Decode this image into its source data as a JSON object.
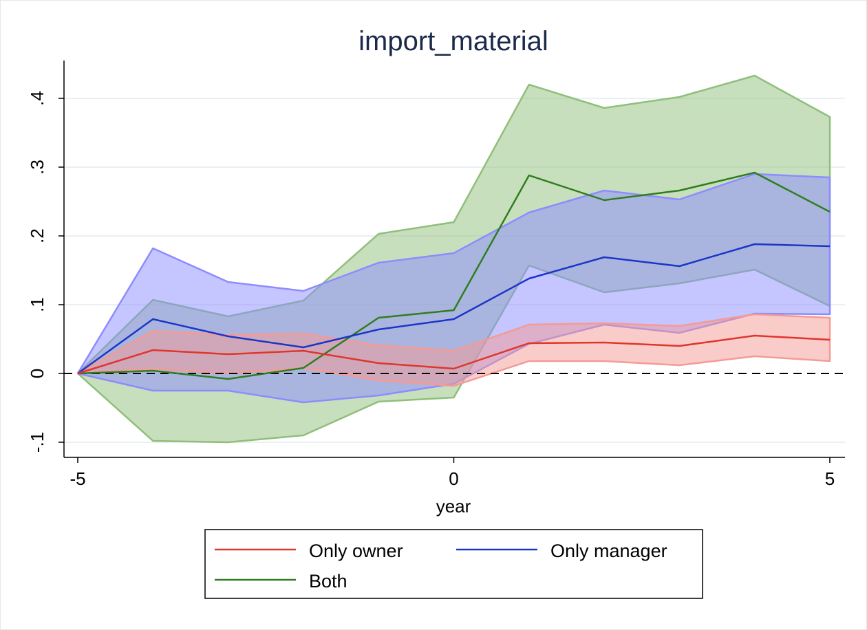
{
  "chart_data": {
    "type": "line",
    "title": "import_material",
    "xlabel": "year",
    "ylabel": "",
    "xlim": [
      -5,
      5
    ],
    "ylim": [
      -0.12,
      0.45
    ],
    "xticks": [
      -5,
      0,
      5
    ],
    "xtick_labels": [
      "-5",
      "0",
      "5"
    ],
    "yticks": [
      -0.1,
      0,
      0.1,
      0.2,
      0.3,
      0.4
    ],
    "ytick_labels": [
      "-.1",
      "0",
      ".1",
      ".2",
      ".3",
      ".4"
    ],
    "grid": true,
    "reference_line": {
      "y": 0,
      "style": "dashed"
    },
    "legend_position": "bottom",
    "x": [
      -5,
      -4,
      -3,
      -2,
      -1,
      0,
      1,
      2,
      3,
      4,
      5
    ],
    "series": [
      {
        "name": "Both",
        "color": "#2e7d1e",
        "band_color": "#8fbf7a",
        "values": [
          0,
          0.004,
          -0.008,
          0.008,
          0.081,
          0.092,
          0.288,
          0.252,
          0.266,
          0.292,
          0.235
        ],
        "lower": [
          0,
          -0.098,
          -0.1,
          -0.09,
          -0.041,
          -0.035,
          0.157,
          0.118,
          0.131,
          0.151,
          0.098
        ],
        "upper": [
          0,
          0.107,
          0.083,
          0.106,
          0.203,
          0.22,
          0.42,
          0.386,
          0.402,
          0.433,
          0.373
        ]
      },
      {
        "name": "Only manager",
        "color": "#1c35c8",
        "band_color": "#8c8cff",
        "values": [
          0,
          0.079,
          0.054,
          0.038,
          0.064,
          0.079,
          0.138,
          0.169,
          0.156,
          0.188,
          0.185
        ],
        "lower": [
          0,
          -0.025,
          -0.025,
          -0.042,
          -0.032,
          -0.015,
          0.043,
          0.071,
          0.059,
          0.087,
          0.086
        ],
        "upper": [
          0,
          0.182,
          0.133,
          0.12,
          0.161,
          0.175,
          0.234,
          0.266,
          0.253,
          0.29,
          0.285
        ]
      },
      {
        "name": "Only owner",
        "color": "#e0352b",
        "band_color": "#f59a94",
        "values": [
          0,
          0.034,
          0.028,
          0.033,
          0.015,
          0.007,
          0.044,
          0.045,
          0.04,
          0.055,
          0.049
        ],
        "lower": [
          0,
          0.007,
          0.0,
          0.008,
          -0.01,
          -0.018,
          0.018,
          0.018,
          0.012,
          0.025,
          0.018
        ],
        "upper": [
          0,
          0.062,
          0.056,
          0.058,
          0.041,
          0.033,
          0.071,
          0.073,
          0.069,
          0.086,
          0.081
        ]
      }
    ],
    "legend": [
      {
        "label": "Only owner",
        "color": "#e0352b"
      },
      {
        "label": "Only manager",
        "color": "#1c35c8"
      },
      {
        "label": "Both",
        "color": "#2e7d1e"
      }
    ]
  }
}
